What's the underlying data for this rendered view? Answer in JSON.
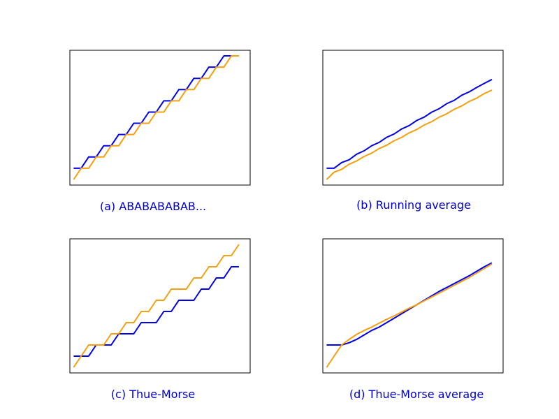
{
  "colors": {
    "series_blue": "#0000ee",
    "series_orange": "#f5a00f",
    "caption": "#0000cc",
    "frame": "#000000"
  },
  "chart_data": [
    {
      "type": "line",
      "caption": "(a) ABABABABAB...",
      "axes_visible": false,
      "grid": false,
      "xlim": [
        -0.5,
        23.5
      ],
      "ylim": [
        -0.5,
        11.5
      ],
      "series": [
        {
          "color": "#0000ee",
          "x": [
            0,
            1,
            2,
            3,
            4,
            5,
            6,
            7,
            8,
            9,
            10,
            11,
            12,
            13,
            14,
            15,
            16,
            17,
            18,
            19,
            20,
            21,
            22
          ],
          "y": [
            1,
            1,
            2,
            2,
            3,
            3,
            4,
            4,
            5,
            5,
            6,
            6,
            7,
            7,
            8,
            8,
            9,
            9,
            10,
            10,
            11,
            11,
            11
          ]
        },
        {
          "color": "#f5a00f",
          "x": [
            0,
            1,
            2,
            3,
            4,
            5,
            6,
            7,
            8,
            9,
            10,
            11,
            12,
            13,
            14,
            15,
            16,
            17,
            18,
            19,
            20,
            21,
            22
          ],
          "y": [
            0,
            1,
            1,
            2,
            2,
            3,
            3,
            4,
            4,
            5,
            5,
            6,
            6,
            7,
            7,
            8,
            8,
            9,
            9,
            10,
            10,
            11,
            11
          ]
        }
      ]
    },
    {
      "type": "line",
      "caption": "(b) Running average",
      "axes_visible": false,
      "grid": false,
      "xlim": [
        -0.5,
        23.5
      ],
      "ylim": [
        -0.5,
        11.5
      ],
      "series": [
        {
          "color": "#0000ee",
          "x": [
            0,
            1,
            2,
            3,
            4,
            5,
            6,
            7,
            8,
            9,
            10,
            11,
            12,
            13,
            14,
            15,
            16,
            17,
            18,
            19,
            20,
            21,
            22
          ],
          "y": [
            1,
            1,
            1.5,
            1.75,
            2.25,
            2.55,
            3,
            3.3,
            3.75,
            4.05,
            4.5,
            4.8,
            5.25,
            5.55,
            6,
            6.3,
            6.75,
            7.05,
            7.5,
            7.8,
            8.2,
            8.55,
            8.9
          ]
        },
        {
          "color": "#f5a00f",
          "x": [
            0,
            1,
            2,
            3,
            4,
            5,
            6,
            7,
            8,
            9,
            10,
            11,
            12,
            13,
            14,
            15,
            16,
            17,
            18,
            19,
            20,
            21,
            22
          ],
          "y": [
            0,
            0.65,
            0.9,
            1.35,
            1.65,
            2.05,
            2.35,
            2.75,
            3.05,
            3.45,
            3.75,
            4.15,
            4.45,
            4.85,
            5.15,
            5.55,
            5.85,
            6.25,
            6.55,
            6.95,
            7.25,
            7.65,
            7.95
          ]
        }
      ]
    },
    {
      "type": "line",
      "caption": "(c) Thue-Morse",
      "axes_visible": false,
      "grid": false,
      "xlim": [
        -0.5,
        23.5
      ],
      "ylim": [
        -0.5,
        11.5
      ],
      "series": [
        {
          "color": "#0000ee",
          "x": [
            0,
            1,
            2,
            3,
            4,
            5,
            6,
            7,
            8,
            9,
            10,
            11,
            12,
            13,
            14,
            15,
            16,
            17,
            18,
            19,
            20,
            21,
            22
          ],
          "y": [
            1,
            1,
            1,
            2,
            2,
            2,
            3,
            3,
            3,
            4,
            4,
            4,
            5,
            5,
            6,
            6,
            6,
            7,
            7,
            8,
            8,
            9,
            9
          ]
        },
        {
          "color": "#f5a00f",
          "x": [
            0,
            1,
            2,
            3,
            4,
            5,
            6,
            7,
            8,
            9,
            10,
            11,
            12,
            13,
            14,
            15,
            16,
            17,
            18,
            19,
            20,
            21,
            22
          ],
          "y": [
            0,
            1,
            2,
            2,
            2,
            3,
            3,
            4,
            4,
            5,
            5,
            6,
            6,
            7,
            7,
            7,
            8,
            8,
            9,
            9,
            10,
            10,
            11
          ]
        }
      ]
    },
    {
      "type": "line",
      "caption": "(d) Thue-Morse average",
      "axes_visible": false,
      "grid": false,
      "xlim": [
        -0.5,
        23.5
      ],
      "ylim": [
        -0.5,
        11.5
      ],
      "series": [
        {
          "color": "#0000ee",
          "x": [
            0,
            1,
            2,
            3,
            4,
            5,
            6,
            7,
            8,
            9,
            10,
            11,
            12,
            13,
            14,
            15,
            16,
            17,
            18,
            19,
            20,
            21,
            22
          ],
          "y": [
            2,
            2,
            2,
            2.2,
            2.5,
            2.9,
            3.3,
            3.6,
            4,
            4.4,
            4.8,
            5.2,
            5.6,
            6,
            6.4,
            6.8,
            7.15,
            7.5,
            7.85,
            8.2,
            8.6,
            9,
            9.35
          ]
        },
        {
          "color": "#f5a00f",
          "x": [
            0,
            1,
            2,
            3,
            4,
            5,
            6,
            7,
            8,
            9,
            10,
            11,
            12,
            13,
            14,
            15,
            16,
            17,
            18,
            19,
            20,
            21,
            22
          ],
          "y": [
            0,
            1,
            2,
            2.5,
            2.95,
            3.3,
            3.6,
            3.95,
            4.3,
            4.6,
            4.95,
            5.3,
            5.6,
            5.95,
            6.3,
            6.65,
            7,
            7.35,
            7.7,
            8.05,
            8.45,
            8.85,
            9.25
          ]
        }
      ]
    }
  ]
}
